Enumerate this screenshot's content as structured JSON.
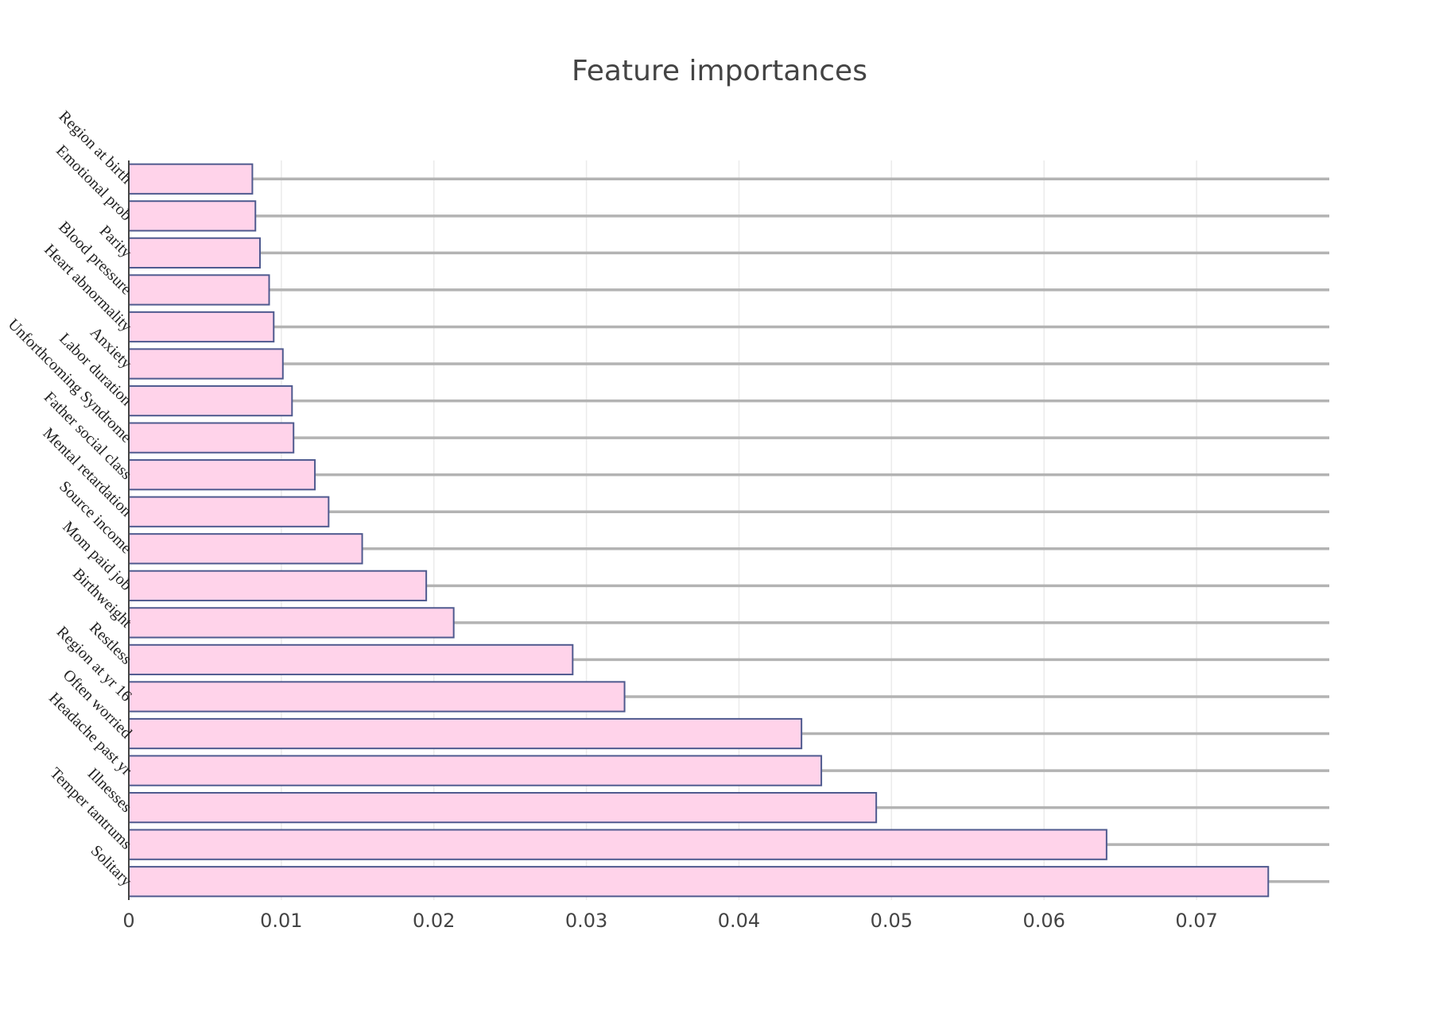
{
  "chart_data": {
    "type": "bar",
    "orientation": "horizontal",
    "title": "Feature importances",
    "xlabel": "",
    "ylabel": "",
    "xlim": [
      0,
      0.0787
    ],
    "xticks": [
      0,
      0.01,
      0.02,
      0.03,
      0.04,
      0.05,
      0.06,
      0.07
    ],
    "xtick_labels": [
      "0",
      "0.01",
      "0.02",
      "0.03",
      "0.04",
      "0.05",
      "0.06",
      "0.07"
    ],
    "grid": true,
    "legend": "none",
    "colors": {
      "bar_fill": "#ffd3ea",
      "bar_edge": "#4f5a8f",
      "reference_line": "#b3b3b3",
      "grid": "#ebebeb"
    },
    "categories": [
      "Region at birth",
      "Emotional prob",
      "Parity",
      "Blood pressure",
      "Heart abnormality",
      "Anxiety",
      "Labor duration",
      "Unforthcoming Syndrome",
      "Father social class",
      "Mental retardation",
      "Source income",
      "Mom paid job",
      "Birthweight",
      "Restless",
      "Region at yr 16",
      "Often worried",
      "Headache past yr",
      "Illnesses",
      "Temper tantrums",
      "Solitary"
    ],
    "values": [
      0.0081,
      0.0083,
      0.0086,
      0.0092,
      0.0095,
      0.0101,
      0.0107,
      0.0108,
      0.0122,
      0.0131,
      0.0153,
      0.0195,
      0.0213,
      0.0291,
      0.0325,
      0.0441,
      0.0454,
      0.049,
      0.0641,
      0.0747
    ]
  }
}
